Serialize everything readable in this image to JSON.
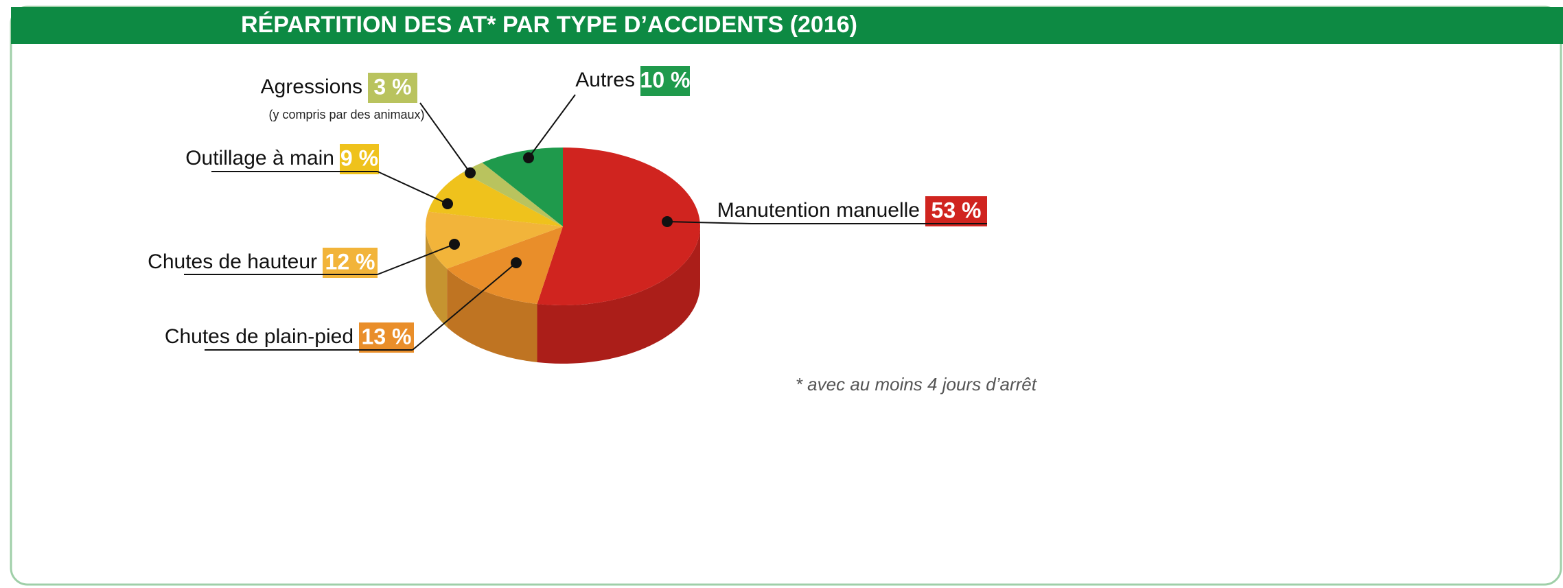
{
  "chart_data": {
    "type": "pie",
    "title": "RÉPARTITION DES AT* PAR TYPE D’ACCIDENTS (2016)",
    "categories": [
      "Manutention manuelle",
      "Chutes de plain-pied",
      "Chutes de hauteur",
      "Outillage à main",
      "Agressions",
      "Autres"
    ],
    "values": [
      53,
      13,
      12,
      9,
      3,
      10
    ],
    "value_labels": [
      "53 %",
      "13 %",
      "12 %",
      "9 %",
      "3 %",
      "10 %"
    ],
    "colors": [
      "#d0241f",
      "#e98e2a",
      "#f2b43a",
      "#efc21c",
      "#b9c35e",
      "#1f9a4c"
    ],
    "annotations": [
      "(y compris par des animaux)"
    ],
    "footnote": "* avec au moins 4 jours d’arrêt"
  }
}
